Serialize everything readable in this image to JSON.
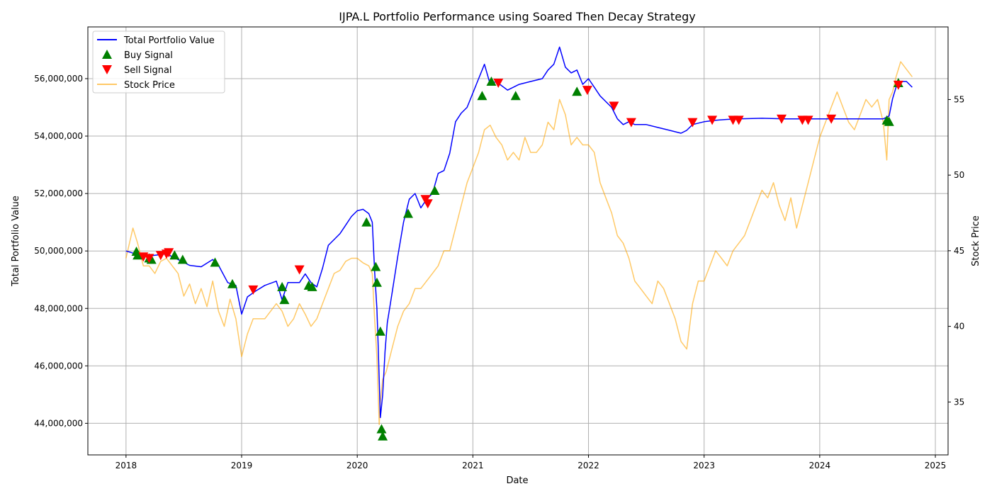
{
  "chart_data": {
    "type": "line",
    "title": "IJPA.L Portfolio Performance using Soared Then Decay Strategy",
    "xlabel": "Date",
    "ylabel_left": "Total Portfolio Value",
    "ylabel_right": "Stock Price",
    "x_ticks": [
      "2018",
      "2019",
      "2020",
      "2021",
      "2022",
      "2023",
      "2024",
      "2025"
    ],
    "y_left_ticks": [
      "44,000,000",
      "46,000,000",
      "48,000,000",
      "50,000,000",
      "52,000,000",
      "54,000,000",
      "56,000,000"
    ],
    "y_right_ticks": [
      "35",
      "40",
      "45",
      "50",
      "55"
    ],
    "xlim": [
      2017.67,
      2025.11
    ],
    "ylim_left": [
      42900000,
      57800000
    ],
    "ylim_right": [
      31.5,
      59.8
    ],
    "grid": true,
    "legend": {
      "placement": "top-left",
      "entries": [
        "Total Portfolio Value",
        "Buy Signal",
        "Sell Signal",
        "Stock Price"
      ]
    },
    "colors": {
      "portfolio": "#0000ff",
      "buy": "#008000",
      "sell": "#ff0000",
      "stock": "#ffa500"
    },
    "series": [
      {
        "name": "Total Portfolio Value",
        "axis": "left",
        "x": [
          2018.0,
          2018.08,
          2018.15,
          2018.25,
          2018.35,
          2018.45,
          2018.55,
          2018.65,
          2018.75,
          2018.8,
          2018.88,
          2018.95,
          2019.0,
          2019.05,
          2019.12,
          2019.2,
          2019.3,
          2019.35,
          2019.4,
          2019.5,
          2019.55,
          2019.6,
          2019.65,
          2019.7,
          2019.75,
          2019.8,
          2019.85,
          2019.9,
          2019.95,
          2020.0,
          2020.05,
          2020.1,
          2020.13,
          2020.15,
          2020.17,
          2020.18,
          2020.2,
          2020.22,
          2020.24,
          2020.26,
          2020.3,
          2020.35,
          2020.4,
          2020.45,
          2020.5,
          2020.55,
          2020.6,
          2020.65,
          2020.7,
          2020.75,
          2020.8,
          2020.85,
          2020.9,
          2020.95,
          2021.0,
          2021.05,
          2021.1,
          2021.15,
          2021.2,
          2021.3,
          2021.4,
          2021.5,
          2021.6,
          2021.65,
          2021.7,
          2021.75,
          2021.8,
          2021.85,
          2021.9,
          2021.95,
          2022.0,
          2022.05,
          2022.1,
          2022.15,
          2022.2,
          2022.25,
          2022.3,
          2022.35,
          2022.4,
          2022.5,
          2022.6,
          2022.7,
          2022.8,
          2022.85,
          2022.9,
          2022.95,
          2023.0,
          2023.1,
          2023.2,
          2023.3,
          2023.5,
          2023.7,
          2023.9,
          2024.0,
          2024.2,
          2024.4,
          2024.55,
          2024.6,
          2024.63,
          2024.66,
          2024.7,
          2024.75,
          2024.8
        ],
        "values": [
          50000000,
          49900000,
          49800000,
          49850000,
          49900000,
          49700000,
          49500000,
          49450000,
          49700000,
          49500000,
          48900000,
          48800000,
          47800000,
          48400000,
          48600000,
          48800000,
          48950000,
          48300000,
          48900000,
          48900000,
          49200000,
          48900000,
          48750000,
          49400000,
          50200000,
          50400000,
          50600000,
          50900000,
          51200000,
          51400000,
          51450000,
          51300000,
          51000000,
          49300000,
          48000000,
          46800000,
          44200000,
          45000000,
          46500000,
          47500000,
          48500000,
          49800000,
          51000000,
          51800000,
          52000000,
          51500000,
          51800000,
          52000000,
          52700000,
          52800000,
          53400000,
          54500000,
          54800000,
          55000000,
          55500000,
          56000000,
          56500000,
          55800000,
          55900000,
          55600000,
          55800000,
          55900000,
          56000000,
          56300000,
          56500000,
          57100000,
          56400000,
          56200000,
          56300000,
          55800000,
          56000000,
          55700000,
          55400000,
          55200000,
          55000000,
          54600000,
          54400000,
          54500000,
          54400000,
          54400000,
          54300000,
          54200000,
          54100000,
          54200000,
          54400000,
          54450000,
          54500000,
          54550000,
          54580000,
          54600000,
          54620000,
          54600000,
          54600000,
          54600000,
          54600000,
          54600000,
          54600000,
          54700000,
          55300000,
          55700000,
          55900000,
          55900000,
          55700000
        ]
      },
      {
        "name": "Stock Price",
        "axis": "right",
        "x": [
          2018.0,
          2018.03,
          2018.06,
          2018.1,
          2018.15,
          2018.2,
          2018.25,
          2018.3,
          2018.35,
          2018.4,
          2018.45,
          2018.5,
          2018.55,
          2018.6,
          2018.65,
          2018.7,
          2018.75,
          2018.8,
          2018.85,
          2018.9,
          2018.95,
          2019.0,
          2019.05,
          2019.1,
          2019.2,
          2019.3,
          2019.35,
          2019.4,
          2019.45,
          2019.5,
          2019.55,
          2019.6,
          2019.65,
          2019.7,
          2019.75,
          2019.8,
          2019.85,
          2019.9,
          2019.95,
          2020.0,
          2020.05,
          2020.1,
          2020.13,
          2020.15,
          2020.17,
          2020.19,
          2020.2,
          2020.22,
          2020.25,
          2020.3,
          2020.35,
          2020.4,
          2020.45,
          2020.5,
          2020.55,
          2020.6,
          2020.65,
          2020.7,
          2020.75,
          2020.8,
          2020.85,
          2020.9,
          2020.95,
          2021.0,
          2021.05,
          2021.1,
          2021.15,
          2021.2,
          2021.25,
          2021.3,
          2021.35,
          2021.4,
          2021.45,
          2021.5,
          2021.55,
          2021.6,
          2021.65,
          2021.7,
          2021.75,
          2021.8,
          2021.85,
          2021.9,
          2021.95,
          2022.0,
          2022.05,
          2022.1,
          2022.15,
          2022.2,
          2022.25,
          2022.3,
          2022.35,
          2022.4,
          2022.45,
          2022.5,
          2022.55,
          2022.6,
          2022.65,
          2022.7,
          2022.75,
          2022.8,
          2022.85,
          2022.9,
          2022.95,
          2023.0,
          2023.05,
          2023.1,
          2023.15,
          2023.2,
          2023.25,
          2023.3,
          2023.35,
          2023.4,
          2023.45,
          2023.5,
          2023.55,
          2023.6,
          2023.65,
          2023.7,
          2023.75,
          2023.8,
          2023.85,
          2023.9,
          2023.95,
          2024.0,
          2024.05,
          2024.1,
          2024.15,
          2024.2,
          2024.25,
          2024.3,
          2024.35,
          2024.4,
          2024.45,
          2024.5,
          2024.55,
          2024.58,
          2024.6,
          2024.63,
          2024.66,
          2024.7,
          2024.75,
          2024.8
        ],
        "values": [
          44.5,
          45.5,
          46.5,
          45.5,
          44.0,
          44.0,
          43.5,
          44.3,
          44.5,
          44.0,
          43.5,
          42.0,
          42.8,
          41.5,
          42.5,
          41.3,
          43.0,
          41.0,
          40.0,
          41.8,
          40.5,
          38.0,
          39.5,
          40.5,
          40.5,
          41.5,
          41.0,
          40.0,
          40.5,
          41.5,
          40.8,
          40.0,
          40.5,
          41.5,
          42.5,
          43.5,
          43.7,
          44.3,
          44.5,
          44.5,
          44.2,
          44.0,
          43.5,
          40.5,
          38.0,
          33.5,
          35.0,
          36.5,
          37.0,
          38.5,
          40.0,
          41.0,
          41.5,
          42.5,
          42.5,
          43.0,
          43.5,
          44.0,
          45.0,
          45.0,
          46.5,
          48.0,
          49.5,
          50.5,
          51.5,
          53.0,
          53.3,
          52.5,
          52.0,
          51.0,
          51.5,
          51.0,
          52.5,
          51.5,
          51.5,
          52.0,
          53.5,
          53.0,
          55.0,
          54.0,
          52.0,
          52.5,
          52.0,
          52.0,
          51.5,
          49.5,
          48.5,
          47.5,
          46.0,
          45.5,
          44.5,
          43.0,
          42.5,
          42.0,
          41.5,
          43.0,
          42.5,
          41.5,
          40.5,
          39.0,
          38.5,
          41.5,
          43.0,
          43.0,
          44.0,
          45.0,
          44.5,
          44.0,
          45.0,
          45.5,
          46.0,
          47.0,
          48.0,
          49.0,
          48.5,
          49.5,
          48.0,
          47.0,
          48.5,
          46.5,
          48.0,
          49.5,
          51.0,
          52.5,
          53.5,
          54.5,
          55.5,
          54.5,
          53.5,
          53.0,
          54.0,
          55.0,
          54.5,
          55.0,
          53.5,
          51.0,
          55.0,
          55.5,
          56.5,
          57.5,
          57.0,
          56.5
        ]
      }
    ],
    "buy_signals": {
      "name": "Buy Signal",
      "x": [
        2018.09,
        2018.1,
        2018.2,
        2018.22,
        2018.42,
        2018.49,
        2018.77,
        2018.92,
        2019.35,
        2019.37,
        2019.58,
        2019.61,
        2020.08,
        2020.16,
        2020.17,
        2020.2,
        2020.21,
        2020.22,
        2020.44,
        2020.67,
        2021.08,
        2021.16,
        2021.37,
        2021.9,
        2024.58,
        2024.6,
        2024.68
      ],
      "values": [
        49980000,
        49850000,
        49750000,
        49700000,
        49850000,
        49700000,
        49600000,
        48850000,
        48750000,
        48300000,
        48800000,
        48750000,
        51000000,
        49450000,
        48900000,
        47200000,
        43800000,
        43550000,
        51300000,
        52100000,
        55400000,
        55900000,
        55400000,
        55550000,
        54550000,
        54500000,
        55850000
      ]
    },
    "sell_signals": {
      "name": "Sell Signal",
      "x": [
        2018.15,
        2018.2,
        2018.3,
        2018.35,
        2018.37,
        2019.1,
        2019.5,
        2020.59,
        2020.61,
        2021.22,
        2021.99,
        2022.22,
        2022.37,
        2022.9,
        2023.07,
        2023.25,
        2023.3,
        2023.67,
        2023.85,
        2023.9,
        2024.1,
        2024.68
      ],
      "values": [
        49800000,
        49750000,
        49850000,
        49900000,
        49950000,
        48650000,
        49350000,
        51800000,
        51650000,
        55850000,
        55600000,
        55050000,
        54480000,
        54480000,
        54560000,
        54560000,
        54560000,
        54600000,
        54560000,
        54560000,
        54600000,
        55780000
      ]
    }
  }
}
